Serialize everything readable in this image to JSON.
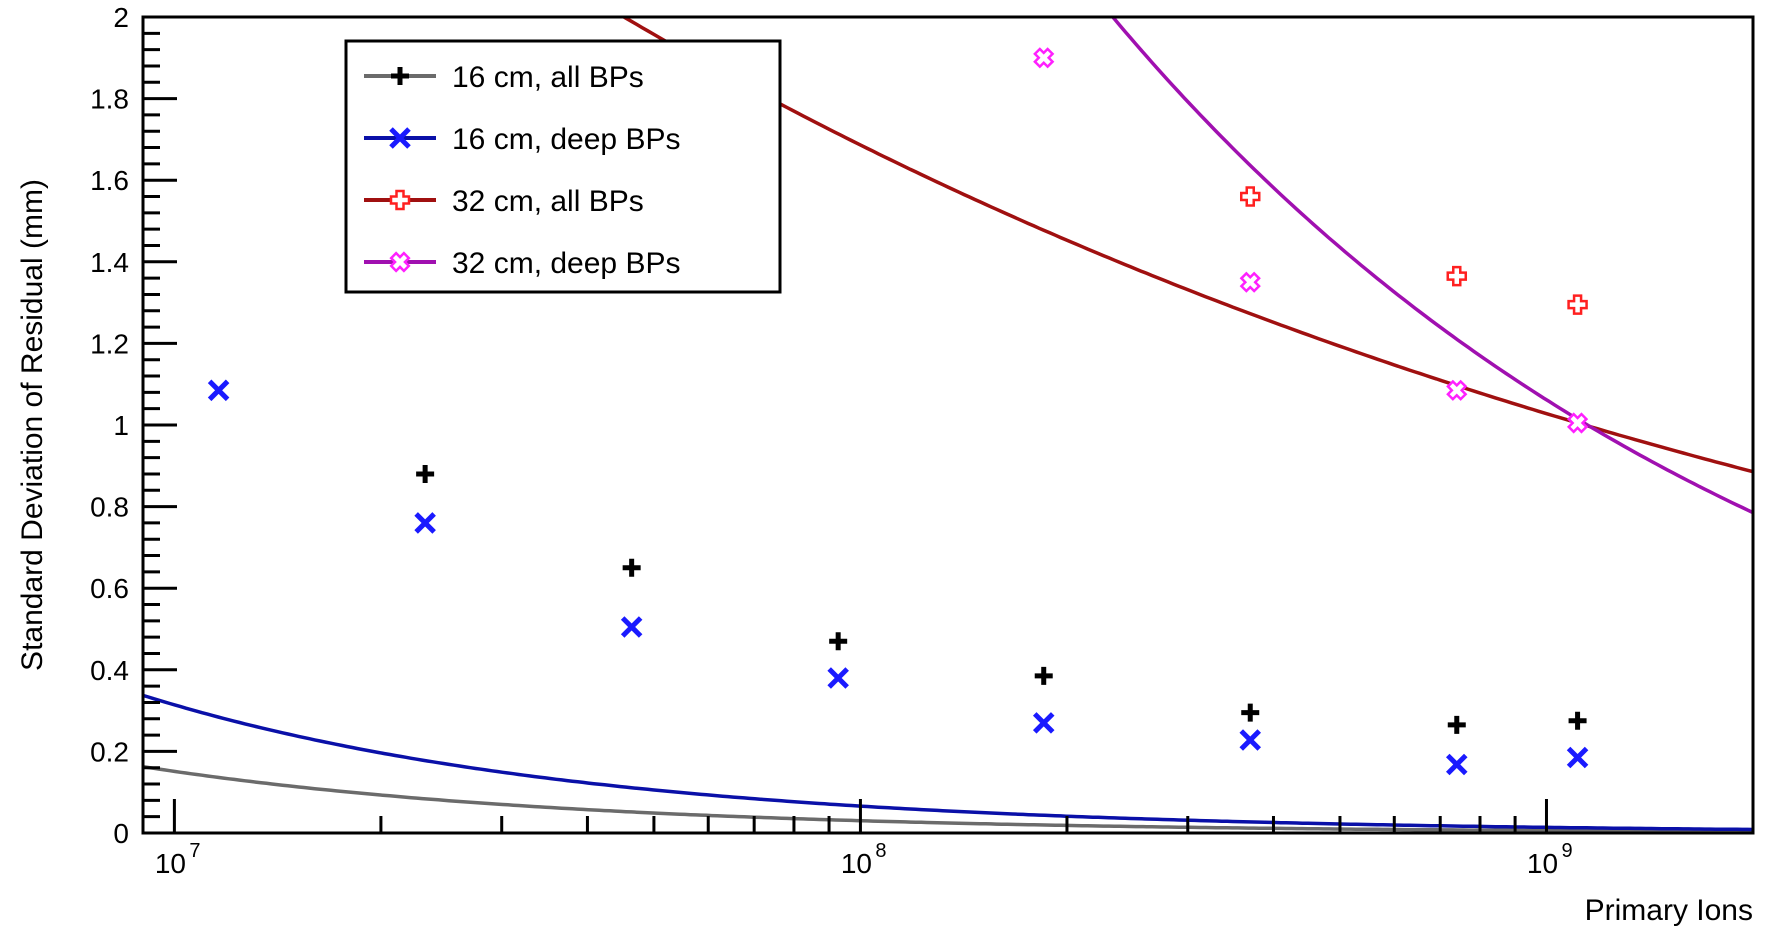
{
  "chart_data": {
    "type": "scatter",
    "title": "",
    "xlabel": "Primary Ions",
    "ylabel": "Standard Deviation of Residual (mm)",
    "xscale": "log",
    "xlim": [
      9000000,
      2000000000
    ],
    "ylim": [
      0,
      2
    ],
    "grid": false,
    "legend_position": "top-left",
    "x_tick_labels": [
      {
        "base": "10",
        "exp": "7",
        "value": 10000000
      },
      {
        "base": "10",
        "exp": "8",
        "value": 100000000
      },
      {
        "base": "10",
        "exp": "9",
        "value": 1000000000
      }
    ],
    "y_tick_labels": [
      "0",
      "0.2",
      "0.4",
      "0.6",
      "0.8",
      "1",
      "1.2",
      "1.4",
      "1.6",
      "1.8",
      "2"
    ],
    "series": [
      {
        "name": "16 cm, all BPs",
        "marker": "plus",
        "marker_color": "#000000",
        "line_color": "#6b6b6b",
        "points": [
          [
            11600000,
            null
          ],
          [
            23200000,
            0.88
          ],
          [
            46400000,
            0.65
          ],
          [
            92800000,
            0.47
          ],
          [
            185000000,
            0.385
          ],
          [
            370000000,
            0.295
          ],
          [
            740000000,
            0.265
          ],
          [
            1110000000,
            0.275
          ]
        ],
        "fit": {
          "a": 12000,
          "b": 0.7
        }
      },
      {
        "name": "16 cm, deep BPs",
        "marker": "x",
        "marker_color": "#1a1aff",
        "line_color": "#0a10a8",
        "points": [
          [
            11600000,
            1.085
          ],
          [
            23200000,
            0.76
          ],
          [
            46400000,
            0.505
          ],
          [
            92800000,
            0.38
          ],
          [
            185000000,
            0.27
          ],
          [
            370000000,
            0.228
          ],
          [
            740000000,
            0.168
          ],
          [
            1110000000,
            0.185
          ]
        ],
        "fit": {
          "a": 17500,
          "b": 0.678
        }
      },
      {
        "name": "32 cm, all BPs",
        "marker": "open-plus",
        "marker_color": "#ff2020",
        "line_color": "#a01010",
        "points": [
          [
            370000000,
            1.56
          ],
          [
            740000000,
            1.365
          ],
          [
            1110000000,
            1.295
          ]
        ],
        "fit": {
          "a": 88.5,
          "b": 0.215
        }
      },
      {
        "name": "32 cm, deep BPs",
        "marker": "open-x",
        "marker_color": "#ff20ff",
        "line_color": "#a010b0",
        "points": [
          [
            185000000,
            1.9
          ],
          [
            370000000,
            1.35
          ],
          [
            740000000,
            1.085
          ],
          [
            1110000000,
            1.005
          ]
        ],
        "fit": {
          "a": 8730,
          "b": 0.435
        }
      }
    ]
  }
}
